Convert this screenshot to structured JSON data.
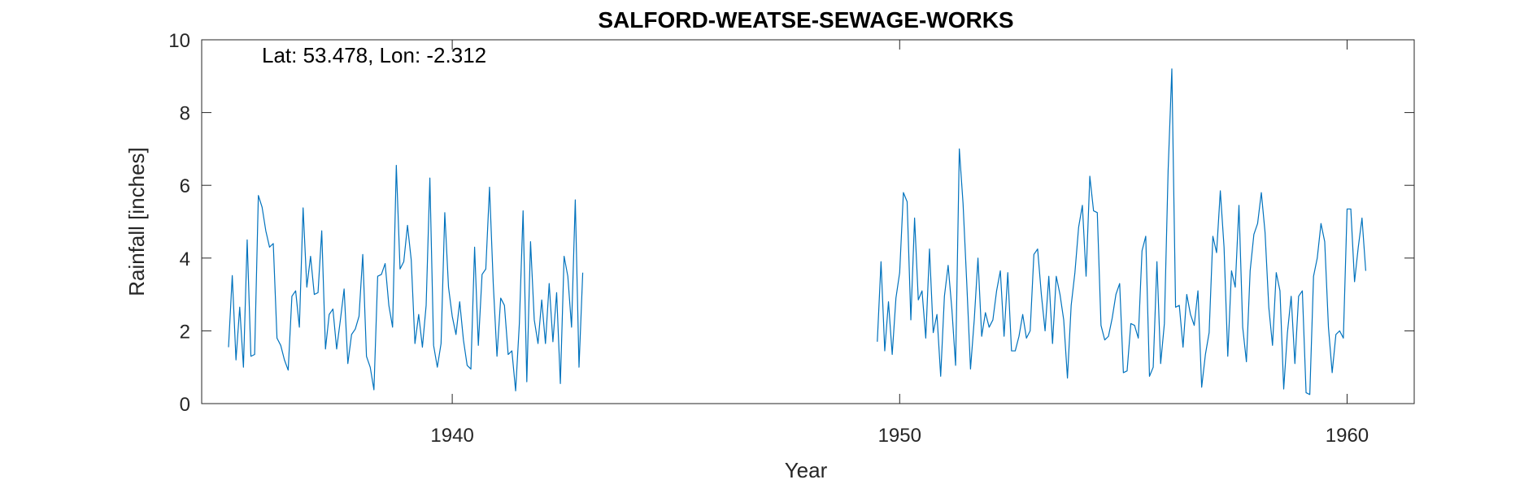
{
  "chart_data": {
    "type": "line",
    "title": "SALFORD-WEATSE-SEWAGE-WORKS",
    "annotation": "Lat: 53.478, Lon: -2.312",
    "xlabel": "Year",
    "ylabel": "Rainfall [inches]",
    "xlim": [
      1934.4,
      1961.5
    ],
    "ylim": [
      0,
      10
    ],
    "xticks": [
      1940,
      1950,
      1960
    ],
    "yticks": [
      0,
      2,
      4,
      6,
      8,
      10
    ],
    "xtick_labels": [
      "1940",
      "1950",
      "1960"
    ],
    "ytick_labels": [
      "0",
      "2",
      "4",
      "6",
      "8",
      "10"
    ],
    "grid": false,
    "box": true,
    "line_color": "#0072BD",
    "series": [
      {
        "start_year": 1935.0,
        "values": [
          1.55,
          3.52,
          1.2,
          2.65,
          1.0,
          4.5,
          1.3,
          1.35,
          5.72,
          5.4,
          4.75,
          4.3,
          4.4,
          1.8,
          1.6,
          1.2,
          0.92,
          2.95,
          3.1,
          2.1,
          5.38,
          3.2,
          4.05,
          3.0,
          3.05,
          4.75,
          1.5,
          2.45,
          2.6,
          1.5,
          2.3,
          3.15,
          1.1,
          1.9,
          2.05,
          2.4,
          4.1,
          1.3,
          1.0,
          0.38,
          3.5,
          3.55,
          3.85,
          2.7,
          2.1,
          6.55,
          3.7,
          3.9,
          4.9,
          3.95,
          1.65,
          2.45,
          1.55,
          2.7,
          6.2,
          1.6,
          1.0,
          1.65,
          5.25,
          3.2,
          2.4,
          1.9,
          2.8,
          1.75,
          1.05,
          0.95,
          4.3,
          1.6,
          3.55,
          3.7,
          5.95,
          3.3,
          1.3,
          2.9,
          2.7,
          1.35,
          1.45,
          0.35,
          2.2,
          5.3,
          0.6,
          4.45,
          2.3,
          1.65,
          2.85,
          1.65,
          3.3,
          1.7,
          3.05,
          0.55,
          4.05,
          3.5,
          2.1,
          5.6,
          1.0,
          3.6
        ]
      },
      {
        "start_year": 1949.5,
        "values": [
          1.7,
          3.9,
          1.45,
          2.8,
          1.35,
          2.9,
          3.6,
          5.8,
          5.55,
          2.3,
          5.1,
          2.85,
          3.1,
          1.8,
          4.25,
          1.95,
          2.45,
          0.75,
          2.95,
          3.8,
          2.6,
          1.05,
          7.0,
          5.5,
          3.3,
          0.95,
          2.3,
          4.0,
          1.85,
          2.5,
          2.1,
          2.3,
          3.1,
          3.65,
          1.85,
          3.6,
          1.45,
          1.45,
          1.85,
          2.45,
          1.8,
          2.0,
          4.1,
          4.25,
          3.0,
          2.0,
          3.5,
          1.65,
          3.5,
          3.0,
          2.3,
          0.7,
          2.7,
          3.6,
          4.85,
          5.45,
          3.5,
          6.25,
          5.3,
          5.25,
          2.15,
          1.75,
          1.85,
          2.35,
          3.0,
          3.3,
          0.85,
          0.9,
          2.2,
          2.15,
          1.8,
          4.2,
          4.6,
          0.75,
          1.0,
          3.9,
          1.1,
          2.2,
          6.4,
          9.2,
          2.65,
          2.7,
          1.55,
          3.0,
          2.45,
          2.15,
          3.1,
          0.45,
          1.35,
          1.95,
          4.6,
          4.15,
          5.85,
          4.3,
          1.3,
          3.65,
          3.2,
          5.45,
          2.1,
          1.15,
          3.65,
          4.65,
          4.95,
          5.8,
          4.7,
          2.65,
          1.6,
          3.6,
          3.1,
          0.4,
          1.95,
          2.95,
          1.1,
          2.95,
          3.1,
          0.3,
          0.25,
          3.5,
          4.0,
          4.95,
          4.45,
          2.1,
          0.85,
          1.9,
          2.0,
          1.8,
          5.35,
          5.35,
          3.35,
          4.3,
          5.1,
          3.65
        ]
      }
    ]
  }
}
